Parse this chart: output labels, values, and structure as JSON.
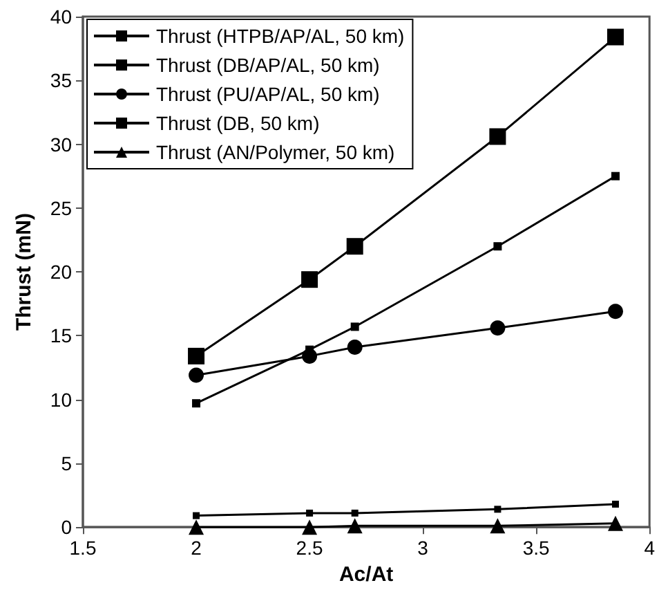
{
  "chart_data": {
    "type": "line",
    "xlabel": "Ac/At",
    "ylabel": "Thrust (mN)",
    "x": [
      2,
      2.5,
      2.7,
      3.33,
      3.85
    ],
    "series": [
      {
        "name": "Thrust (HTPB/AP/AL, 50 km)",
        "color": "#000000",
        "marker": "square",
        "values": [
          13.4,
          19.4,
          22.0,
          30.6,
          38.4
        ]
      },
      {
        "name": "Thrust (DB/AP/AL, 50 km)",
        "color": "#000000",
        "marker": "square",
        "values": [
          9.7,
          13.9,
          15.7,
          22.0,
          27.5
        ]
      },
      {
        "name": "Thrust (PU/AP/AL, 50 km)",
        "color": "#000000",
        "marker": "circle",
        "values": [
          11.9,
          13.4,
          14.1,
          15.6,
          16.9
        ]
      },
      {
        "name": "Thrust (DB, 50 km)",
        "color": "#000000",
        "marker": "square",
        "values": [
          0.9,
          1.1,
          1.1,
          1.4,
          1.8
        ]
      },
      {
        "name": "Thrust (AN/Polymer, 50 km)",
        "color": "#000000",
        "marker": "triangle",
        "values": [
          0,
          0,
          0.1,
          0.1,
          0.3
        ]
      }
    ],
    "xlim": [
      1.5,
      4
    ],
    "xticks": [
      1.5,
      2,
      2.5,
      3,
      3.5,
      4
    ],
    "ylim": [
      0,
      40
    ],
    "yticks": [
      0,
      5,
      10,
      15,
      20,
      25,
      30,
      35,
      40
    ],
    "grid": false,
    "legend": "top left",
    "line_style": "solid"
  }
}
